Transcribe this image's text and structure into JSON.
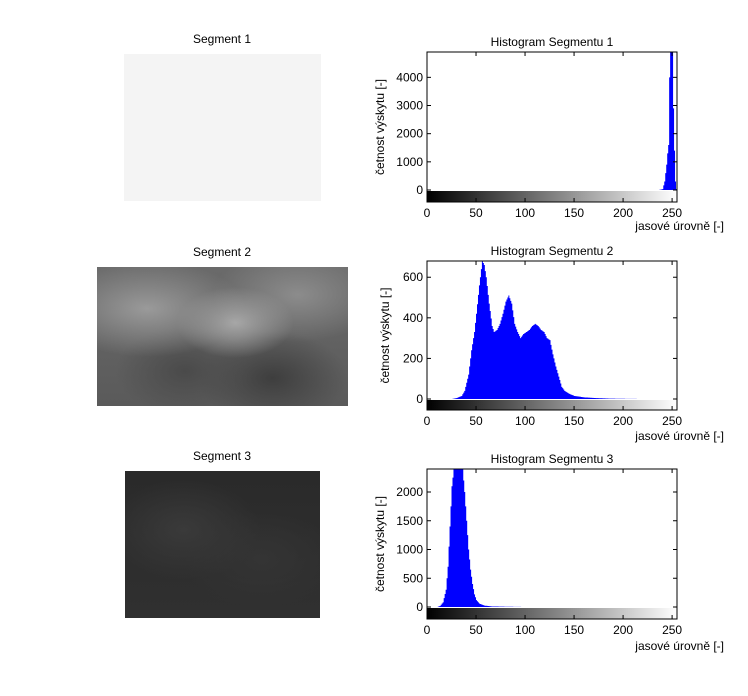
{
  "segments": [
    {
      "title": "Segment 1",
      "image_description_color": "#f5f5f5"
    },
    {
      "title": "Segment 2",
      "image_description_color": "#7a7a7a"
    },
    {
      "title": "Segment 3",
      "image_description_color": "#2e2e2e"
    }
  ],
  "colors": {
    "bars": "#0000ff",
    "axis": "#000000"
  },
  "chart_data": [
    {
      "type": "bar",
      "title": "Histogram Segmentu 1",
      "xlabel": "jasové úrovně [-]",
      "ylabel": "četnost výskytu [-]",
      "xlim": [
        0,
        255
      ],
      "ylim": [
        0,
        4900
      ],
      "xticks": [
        0,
        50,
        100,
        150,
        200,
        250
      ],
      "yticks": [
        0,
        1000,
        2000,
        3000,
        4000
      ],
      "peaks": [
        [
          236,
          0
        ],
        [
          240,
          30
        ],
        [
          242,
          300
        ],
        [
          244,
          900
        ],
        [
          245,
          1300
        ],
        [
          246,
          1600
        ],
        [
          247,
          4000
        ],
        [
          248,
          4900
        ],
        [
          249,
          4900
        ],
        [
          250,
          4900
        ],
        [
          251,
          2900
        ],
        [
          252,
          1400
        ],
        [
          253,
          300
        ],
        [
          254,
          30
        ],
        [
          255,
          0
        ]
      ]
    },
    {
      "type": "bar",
      "title": "Histogram Segmentu 2",
      "xlabel": "jasové úrovně [-]",
      "ylabel": "četnost výskytu [-]",
      "xlim": [
        0,
        255
      ],
      "ylim": [
        0,
        680
      ],
      "xticks": [
        0,
        50,
        100,
        150,
        200,
        250
      ],
      "yticks": [
        0,
        200,
        400,
        600
      ],
      "peaks": [
        [
          25,
          0
        ],
        [
          30,
          5
        ],
        [
          35,
          15
        ],
        [
          38,
          40
        ],
        [
          42,
          120
        ],
        [
          45,
          240
        ],
        [
          48,
          330
        ],
        [
          50,
          420
        ],
        [
          53,
          560
        ],
        [
          56,
          680
        ],
        [
          58,
          660
        ],
        [
          60,
          600
        ],
        [
          63,
          470
        ],
        [
          66,
          360
        ],
        [
          68,
          330
        ],
        [
          71,
          340
        ],
        [
          74,
          370
        ],
        [
          77,
          420
        ],
        [
          80,
          480
        ],
        [
          83,
          510
        ],
        [
          86,
          470
        ],
        [
          89,
          370
        ],
        [
          92,
          330
        ],
        [
          95,
          300
        ],
        [
          98,
          320
        ],
        [
          101,
          330
        ],
        [
          104,
          340
        ],
        [
          107,
          360
        ],
        [
          110,
          370
        ],
        [
          113,
          360
        ],
        [
          116,
          340
        ],
        [
          119,
          330
        ],
        [
          122,
          300
        ],
        [
          125,
          290
        ],
        [
          128,
          220
        ],
        [
          131,
          160
        ],
        [
          134,
          110
        ],
        [
          137,
          60
        ],
        [
          140,
          40
        ],
        [
          145,
          25
        ],
        [
          150,
          15
        ],
        [
          160,
          8
        ],
        [
          170,
          5
        ],
        [
          185,
          2
        ],
        [
          200,
          1
        ],
        [
          220,
          0
        ],
        [
          255,
          0
        ]
      ]
    },
    {
      "type": "bar",
      "title": "Histogram Segmentu 3",
      "xlabel": "jasové úrovně [-]",
      "ylabel": "četnost výskytu [-]",
      "xlim": [
        0,
        255
      ],
      "ylim": [
        0,
        2400
      ],
      "xticks": [
        0,
        50,
        100,
        150,
        200,
        250
      ],
      "yticks": [
        0,
        500,
        1000,
        1500,
        2000
      ],
      "peaks": [
        [
          10,
          0
        ],
        [
          13,
          20
        ],
        [
          16,
          80
        ],
        [
          19,
          300
        ],
        [
          21,
          700
        ],
        [
          23,
          1400
        ],
        [
          25,
          2100
        ],
        [
          27,
          2400
        ],
        [
          30,
          2400
        ],
        [
          33,
          2400
        ],
        [
          36,
          2400
        ],
        [
          38,
          2000
        ],
        [
          40,
          1500
        ],
        [
          42,
          1000
        ],
        [
          44,
          650
        ],
        [
          46,
          400
        ],
        [
          48,
          220
        ],
        [
          50,
          120
        ],
        [
          53,
          60
        ],
        [
          58,
          25
        ],
        [
          65,
          10
        ],
        [
          80,
          5
        ],
        [
          100,
          0
        ],
        [
          255,
          0
        ]
      ]
    }
  ]
}
